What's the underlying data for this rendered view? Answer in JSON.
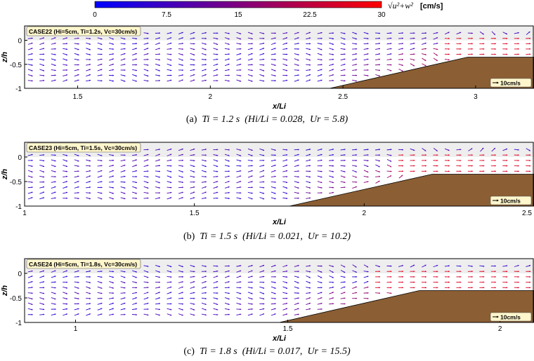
{
  "colorbar": {
    "ticks": [
      "0",
      "7.5",
      "15",
      "22.5",
      "30"
    ],
    "min": 0,
    "max": 30,
    "colors": [
      "#0000ff",
      "#ff0000"
    ],
    "label": "√u²+w²",
    "unit": "[cm/s]"
  },
  "colors": {
    "bed": "#8b5e34",
    "still_water": "#eeeeee",
    "legend_bg": "#fff6cc"
  },
  "chart_data": [
    {
      "type": "quiver",
      "case_label": "CASE22 (Hi=5cm, Ti=1.2s, Vc=30cm/s)",
      "xlabel": "x/Li",
      "ylabel": "z/h",
      "xlim": [
        1.3,
        3.22
      ],
      "ylim": [
        -1,
        0.3
      ],
      "x_ticks": [
        1.5,
        2,
        2.5,
        3
      ],
      "x_tick_labels": [
        "1.5",
        "2",
        "2.5",
        "3"
      ],
      "y_ticks": [
        0,
        -0.5,
        -1
      ],
      "y_tick_labels": [
        "0",
        "-0.5",
        "-1"
      ],
      "bed_profile": [
        [
          1.3,
          -1
        ],
        [
          2.45,
          -1
        ],
        [
          2.97,
          -0.35
        ],
        [
          3.22,
          -0.35
        ]
      ],
      "reference_vector": "10cm/s",
      "caption": {
        "prefix": "(a)",
        "T": "Ti = 1.2 s",
        "steep": "(Hi/Li = 0.028,",
        "ur": "Ur = 5.8)"
      }
    },
    {
      "type": "quiver",
      "case_label": "CASE23 (Hi=5cm, Ti=1.5s, Vc=30cm/s)",
      "xlabel": "x/Li",
      "ylabel": "z/h",
      "xlim": [
        1.0,
        2.5
      ],
      "ylim": [
        -1,
        0.3
      ],
      "x_ticks": [
        1,
        1.5,
        2,
        2.5
      ],
      "x_tick_labels": [
        "1",
        "1.5",
        "2",
        "2.5"
      ],
      "y_ticks": [
        0,
        -0.5,
        -1
      ],
      "y_tick_labels": [
        "0",
        "-0.5",
        "-1"
      ],
      "bed_profile": [
        [
          1.0,
          -1
        ],
        [
          1.78,
          -1
        ],
        [
          2.2,
          -0.35
        ],
        [
          2.5,
          -0.35
        ]
      ],
      "reference_vector": "10cm/s",
      "caption": {
        "prefix": "(b)",
        "T": "Ti = 1.5 s",
        "steep": "(Hi/Li = 0.021,",
        "ur": "Ur = 10.2)"
      }
    },
    {
      "type": "quiver",
      "case_label": "CASE24 (Hi=5cm, Ti=1.8s, Vc=30cm/s)",
      "xlabel": "x/Li",
      "ylabel": "z/h",
      "xlim": [
        0.88,
        2.08
      ],
      "ylim": [
        -1,
        0.3
      ],
      "x_ticks": [
        1,
        1.5,
        2
      ],
      "x_tick_labels": [
        "1",
        "1.5",
        "2"
      ],
      "y_ticks": [
        0,
        -0.5,
        -1
      ],
      "y_tick_labels": [
        "0",
        "-0.5",
        "-1"
      ],
      "bed_profile": [
        [
          0.88,
          -1
        ],
        [
          1.48,
          -1
        ],
        [
          1.81,
          -0.35
        ],
        [
          2.08,
          -0.35
        ]
      ],
      "reference_vector": "10cm/s",
      "caption": {
        "prefix": "(c)",
        "T": "Ti = 1.8 s",
        "steep": "(Hi/Li = 0.017,",
        "ur": "Ur = 15.5)"
      }
    }
  ]
}
